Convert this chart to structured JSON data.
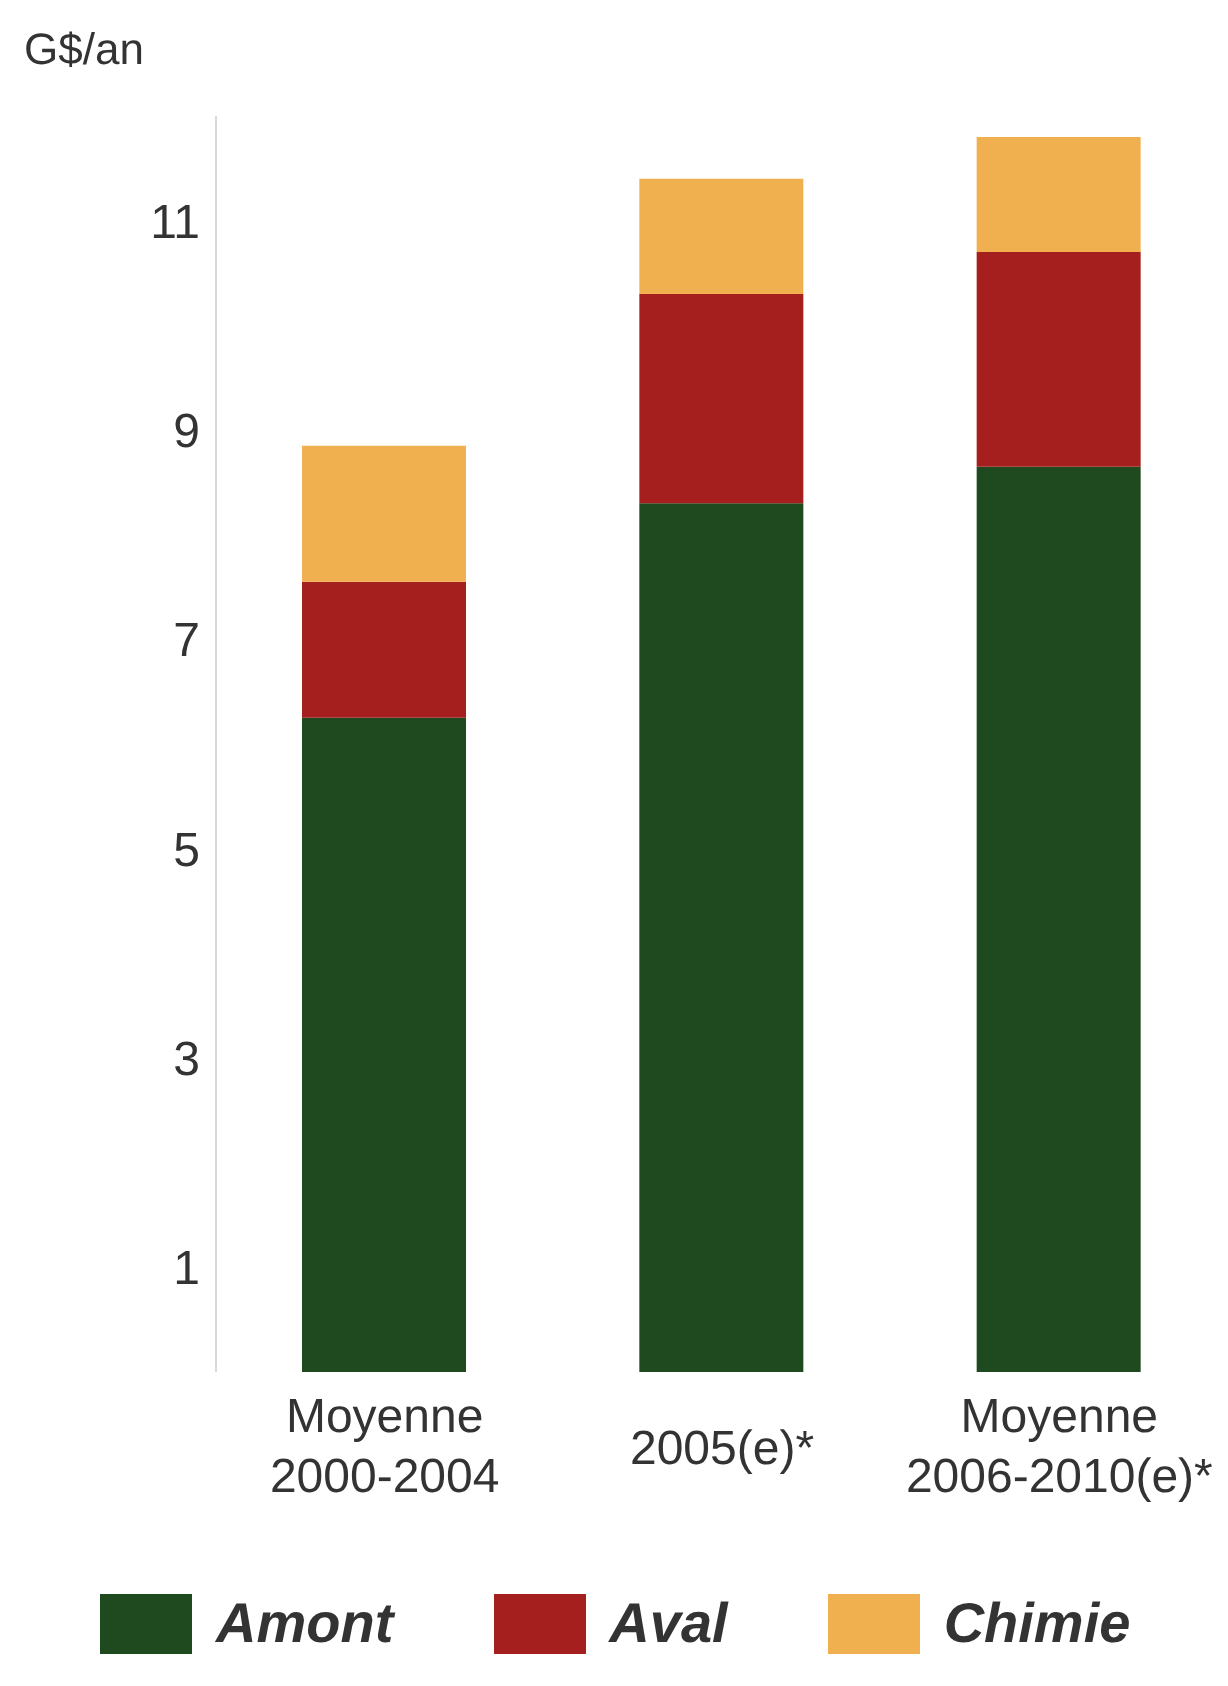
{
  "chart_data": {
    "type": "bar",
    "stacked": true,
    "ylabel": "G$/an",
    "categories": [
      "Moyenne 2000-2004",
      "2005(e)*",
      "Moyenne 2006-2010(e)*"
    ],
    "series": [
      {
        "name": "Amont",
        "color": "#1f4a1f",
        "values": [
          6.25,
          8.3,
          8.65
        ]
      },
      {
        "name": "Aval",
        "color": "#a51f1f",
        "values": [
          1.3,
          2.0,
          2.05
        ]
      },
      {
        "name": "Chimie",
        "color": "#f0b050",
        "values": [
          1.3,
          1.1,
          1.1
        ]
      }
    ],
    "ylim": [
      0,
      12
    ],
    "yticks": [
      1,
      3,
      5,
      7,
      9,
      11
    ],
    "grid": false,
    "legend": "bottom"
  }
}
